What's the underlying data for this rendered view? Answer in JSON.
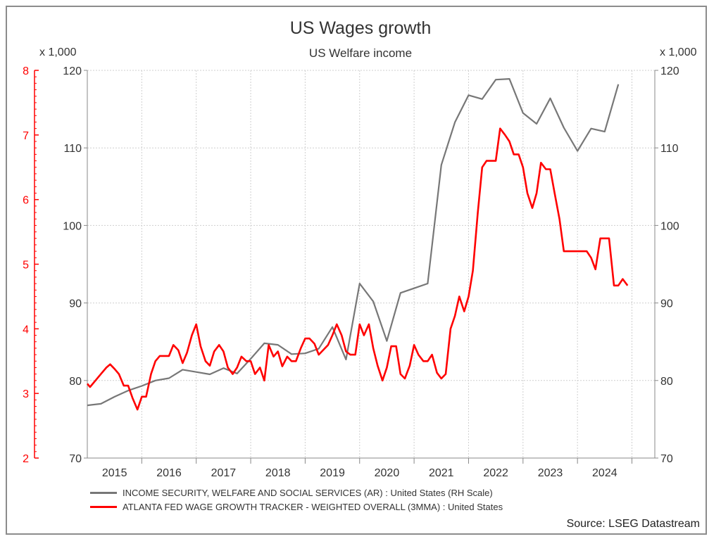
{
  "chart_data": {
    "type": "line",
    "title": "US Wages growth",
    "subtitle": "US Welfare income",
    "left_axis_multiplier": "x 1,000",
    "right_axis_multiplier": "x 1,000",
    "source": "Source: LSEG Datastream",
    "x_ticks": [
      "2015",
      "2016",
      "2017",
      "2018",
      "2019",
      "2020",
      "2021",
      "2022",
      "2023",
      "2024"
    ],
    "xlim": [
      2014.5,
      2024.92
    ],
    "y_left": {
      "min": 2,
      "max": 8,
      "ticks": [
        "2",
        "3",
        "4",
        "5",
        "6",
        "7",
        "8"
      ],
      "color": "#ff0000"
    },
    "y_right": {
      "min": 70,
      "max": 120,
      "ticks": [
        "70",
        "80",
        "90",
        "100",
        "110",
        "120"
      ]
    },
    "series": [
      {
        "name": "INCOME SECURITY, WELFARE AND SOCIAL SERVICES (AR) : United States (RH Scale)",
        "axis": "right",
        "color": "#777777",
        "points": [
          [
            2014.5,
            76.8
          ],
          [
            2014.75,
            77.0
          ],
          [
            2015.0,
            77.9
          ],
          [
            2015.25,
            78.7
          ],
          [
            2015.5,
            79.3
          ],
          [
            2015.75,
            80.0
          ],
          [
            2016.0,
            80.3
          ],
          [
            2016.25,
            81.4
          ],
          [
            2016.5,
            81.1
          ],
          [
            2016.75,
            80.8
          ],
          [
            2017.0,
            81.6
          ],
          [
            2017.25,
            80.9
          ],
          [
            2017.5,
            82.8
          ],
          [
            2017.75,
            84.8
          ],
          [
            2018.0,
            84.6
          ],
          [
            2018.25,
            83.4
          ],
          [
            2018.5,
            83.5
          ],
          [
            2018.75,
            84.1
          ],
          [
            2019.0,
            86.9
          ],
          [
            2019.25,
            82.7
          ],
          [
            2019.5,
            92.5
          ],
          [
            2019.75,
            90.2
          ],
          [
            2020.0,
            85.1
          ],
          [
            2020.25,
            91.3
          ],
          [
            2020.5,
            91.9
          ],
          [
            2020.75,
            92.5
          ],
          [
            2021.0,
            107.8
          ],
          [
            2021.25,
            113.3
          ],
          [
            2021.5,
            116.8
          ],
          [
            2021.75,
            116.3
          ],
          [
            2022.0,
            118.8
          ],
          [
            2022.25,
            118.9
          ],
          [
            2022.5,
            114.5
          ],
          [
            2022.75,
            113.1
          ],
          [
            2023.0,
            116.4
          ],
          [
            2023.25,
            112.6
          ],
          [
            2023.5,
            109.6
          ],
          [
            2023.75,
            112.5
          ],
          [
            2024.0,
            112.1
          ],
          [
            2024.25,
            118.2
          ]
        ]
      },
      {
        "name": "ATLANTA FED WAGE GROWTH TRACKER - WEIGHTED OVERALL (3MMA) : United States",
        "axis": "left",
        "color": "#ff0000",
        "points": [
          [
            2014.5,
            3.15
          ],
          [
            2014.55,
            3.1
          ],
          [
            2014.65,
            3.2
          ],
          [
            2014.75,
            3.3
          ],
          [
            2014.85,
            3.4
          ],
          [
            2014.92,
            3.45
          ],
          [
            2015.0,
            3.38
          ],
          [
            2015.08,
            3.3
          ],
          [
            2015.17,
            3.12
          ],
          [
            2015.25,
            3.12
          ],
          [
            2015.33,
            2.93
          ],
          [
            2015.42,
            2.75
          ],
          [
            2015.5,
            2.95
          ],
          [
            2015.58,
            2.95
          ],
          [
            2015.67,
            3.3
          ],
          [
            2015.75,
            3.5
          ],
          [
            2015.83,
            3.58
          ],
          [
            2015.92,
            3.58
          ],
          [
            2016.0,
            3.58
          ],
          [
            2016.08,
            3.75
          ],
          [
            2016.17,
            3.67
          ],
          [
            2016.25,
            3.47
          ],
          [
            2016.33,
            3.63
          ],
          [
            2016.42,
            3.9
          ],
          [
            2016.5,
            4.07
          ],
          [
            2016.58,
            3.73
          ],
          [
            2016.67,
            3.5
          ],
          [
            2016.75,
            3.43
          ],
          [
            2016.83,
            3.65
          ],
          [
            2016.92,
            3.75
          ],
          [
            2017.0,
            3.65
          ],
          [
            2017.08,
            3.4
          ],
          [
            2017.17,
            3.3
          ],
          [
            2017.25,
            3.4
          ],
          [
            2017.33,
            3.57
          ],
          [
            2017.42,
            3.5
          ],
          [
            2017.5,
            3.5
          ],
          [
            2017.58,
            3.3
          ],
          [
            2017.67,
            3.4
          ],
          [
            2017.75,
            3.2
          ],
          [
            2017.83,
            3.75
          ],
          [
            2017.92,
            3.57
          ],
          [
            2018.0,
            3.65
          ],
          [
            2018.08,
            3.42
          ],
          [
            2018.17,
            3.57
          ],
          [
            2018.25,
            3.5
          ],
          [
            2018.33,
            3.5
          ],
          [
            2018.42,
            3.7
          ],
          [
            2018.5,
            3.85
          ],
          [
            2018.58,
            3.85
          ],
          [
            2018.67,
            3.77
          ],
          [
            2018.75,
            3.6
          ],
          [
            2018.83,
            3.67
          ],
          [
            2018.92,
            3.75
          ],
          [
            2019.0,
            3.9
          ],
          [
            2019.08,
            4.07
          ],
          [
            2019.17,
            3.9
          ],
          [
            2019.25,
            3.65
          ],
          [
            2019.33,
            3.6
          ],
          [
            2019.42,
            3.6
          ],
          [
            2019.5,
            4.07
          ],
          [
            2019.58,
            3.9
          ],
          [
            2019.67,
            4.07
          ],
          [
            2019.75,
            3.7
          ],
          [
            2019.83,
            3.43
          ],
          [
            2019.92,
            3.2
          ],
          [
            2020.0,
            3.4
          ],
          [
            2020.08,
            3.73
          ],
          [
            2020.17,
            3.73
          ],
          [
            2020.25,
            3.3
          ],
          [
            2020.33,
            3.23
          ],
          [
            2020.42,
            3.43
          ],
          [
            2020.5,
            3.75
          ],
          [
            2020.58,
            3.6
          ],
          [
            2020.67,
            3.5
          ],
          [
            2020.75,
            3.5
          ],
          [
            2020.83,
            3.6
          ],
          [
            2020.92,
            3.32
          ],
          [
            2021.0,
            3.23
          ],
          [
            2021.08,
            3.3
          ],
          [
            2021.17,
            4.0
          ],
          [
            2021.25,
            4.2
          ],
          [
            2021.33,
            4.5
          ],
          [
            2021.42,
            4.27
          ],
          [
            2021.5,
            4.5
          ],
          [
            2021.58,
            4.9
          ],
          [
            2021.67,
            5.8
          ],
          [
            2021.75,
            6.5
          ],
          [
            2021.83,
            6.6
          ],
          [
            2021.92,
            6.6
          ],
          [
            2022.0,
            6.6
          ],
          [
            2022.08,
            7.1
          ],
          [
            2022.17,
            7.0
          ],
          [
            2022.25,
            6.9
          ],
          [
            2022.33,
            6.7
          ],
          [
            2022.42,
            6.7
          ],
          [
            2022.5,
            6.5
          ],
          [
            2022.58,
            6.1
          ],
          [
            2022.67,
            5.87
          ],
          [
            2022.75,
            6.1
          ],
          [
            2022.83,
            6.57
          ],
          [
            2022.92,
            6.47
          ],
          [
            2023.0,
            6.47
          ],
          [
            2023.08,
            6.1
          ],
          [
            2023.17,
            5.7
          ],
          [
            2023.25,
            5.2
          ],
          [
            2023.33,
            5.2
          ],
          [
            2023.42,
            5.2
          ],
          [
            2023.5,
            5.2
          ],
          [
            2023.58,
            5.2
          ],
          [
            2023.67,
            5.2
          ],
          [
            2023.75,
            5.1
          ],
          [
            2023.83,
            4.92
          ],
          [
            2023.92,
            5.4
          ],
          [
            2024.0,
            5.4
          ],
          [
            2024.08,
            5.4
          ],
          [
            2024.17,
            4.67
          ],
          [
            2024.25,
            4.67
          ],
          [
            2024.33,
            4.77
          ],
          [
            2024.42,
            4.67
          ]
        ]
      }
    ]
  }
}
